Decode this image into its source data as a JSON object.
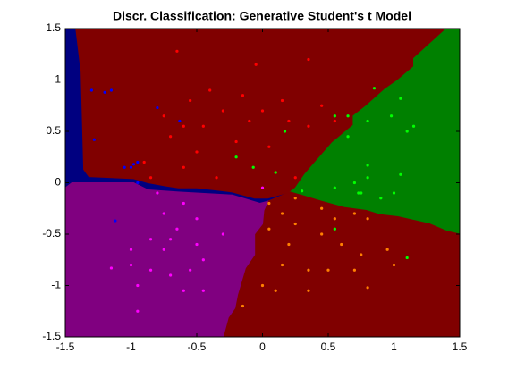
{
  "chart_data": {
    "type": "scatter",
    "title": "Discr. Classification: Generative Student's t Model",
    "xlim": [
      -1.5,
      1.5
    ],
    "ylim": [
      -1.5,
      1.5
    ],
    "xticks": [
      -1.5,
      -1,
      -0.5,
      0,
      0.5,
      1,
      1.5
    ],
    "yticks": [
      -1.5,
      -1,
      -0.5,
      0,
      0.5,
      1,
      1.5
    ],
    "grid": false,
    "regions": [
      {
        "color": "#000080",
        "x": [
          -1.5,
          1.5,
          1.5,
          -1.5
        ],
        "y": [
          1.5,
          1.5,
          -1.5,
          -1.5
        ]
      },
      {
        "color": "#800000",
        "x": [
          -1.42,
          1.4,
          1.15,
          1.15,
          1.03,
          0.93,
          0.79,
          0.69,
          0.69,
          0.53,
          0.38,
          0.32,
          0.25,
          0.21,
          0.04,
          -0.06,
          -0.23,
          -0.36,
          -0.5,
          -0.64,
          -0.74,
          -0.87,
          -0.98,
          -1.32,
          -1.36,
          -1.38
        ],
        "y": [
          1.5,
          1.5,
          1.21,
          1.13,
          1.0,
          0.91,
          0.75,
          0.65,
          0.56,
          0.39,
          0.17,
          0.08,
          -0.05,
          -0.09,
          -0.15,
          -0.15,
          -0.09,
          -0.07,
          -0.05,
          -0.05,
          -0.03,
          0.0,
          0.04,
          0.06,
          0.13,
          1.08
        ]
      },
      {
        "color": "#008000",
        "x": [
          1.4,
          1.5,
          1.5,
          1.4,
          1.27,
          1.03,
          0.89,
          0.79,
          0.62,
          0.45,
          0.32,
          0.21,
          0.25,
          0.32,
          0.38,
          0.53,
          0.69,
          0.69,
          0.79,
          0.93,
          1.03,
          1.15,
          1.15
        ],
        "y": [
          1.5,
          1.5,
          -0.5,
          -0.47,
          -0.4,
          -0.33,
          -0.31,
          -0.27,
          -0.24,
          -0.18,
          -0.13,
          -0.09,
          -0.05,
          0.08,
          0.17,
          0.39,
          0.56,
          0.65,
          0.75,
          0.91,
          1.0,
          1.13,
          1.21
        ]
      },
      {
        "color": "#800000",
        "x": [
          0.21,
          0.32,
          0.45,
          0.62,
          0.79,
          0.89,
          1.03,
          1.27,
          1.4,
          1.5,
          1.5,
          -0.3,
          -0.26,
          -0.21,
          -0.19,
          -0.16,
          -0.13,
          -0.06,
          -0.06,
          0.0,
          0.01,
          0.04
        ],
        "y": [
          -0.09,
          -0.13,
          -0.18,
          -0.24,
          -0.27,
          -0.31,
          -0.33,
          -0.4,
          -0.47,
          -0.5,
          -1.5,
          -1.5,
          -1.31,
          -1.22,
          -1.09,
          -0.96,
          -0.83,
          -0.7,
          -0.5,
          -0.4,
          -0.27,
          -0.18
        ]
      },
      {
        "color": "#800080",
        "x": [
          -1.5,
          -1.45,
          -0.98,
          -0.87,
          -0.64,
          -0.23,
          -0.02,
          0.04,
          0.01,
          0.0,
          -0.06,
          -0.06,
          -0.13,
          -0.16,
          -0.19,
          -0.21,
          -0.26,
          -0.3,
          -1.5
        ],
        "y": [
          -0.05,
          0.0,
          0.0,
          -0.07,
          -0.09,
          -0.12,
          -0.2,
          -0.18,
          -0.27,
          -0.4,
          -0.5,
          -0.7,
          -0.83,
          -0.96,
          -1.09,
          -1.22,
          -1.31,
          -1.5,
          -1.5
        ]
      }
    ],
    "series": [
      {
        "color": "#ff0000",
        "x": [
          -0.65,
          -0.05,
          0.35,
          -0.4,
          -0.55,
          -0.3,
          -0.15,
          0.15,
          -0.75,
          -0.6,
          -0.45,
          -0.1,
          0.2,
          0.35,
          0.05,
          -0.5,
          -0.2,
          -0.6,
          -0.35,
          -0.9,
          -0.85,
          0.1,
          0.25,
          0.0,
          0.45,
          -0.7,
          0.55
        ],
        "y": [
          1.28,
          1.15,
          1.2,
          0.9,
          0.8,
          0.7,
          0.85,
          0.8,
          0.65,
          0.55,
          0.55,
          0.6,
          0.6,
          0.55,
          0.35,
          0.3,
          0.4,
          0.15,
          0.05,
          0.2,
          0.05,
          0.1,
          0.05,
          0.7,
          0.75,
          0.45,
          0.6
        ]
      },
      {
        "color": "#0000ff",
        "x": [
          -1.3,
          -1.2,
          -1.15,
          -1.28,
          -0.8,
          -0.95,
          -1.0,
          -0.98,
          -1.05,
          -0.95,
          -1.12,
          -0.63
        ],
        "y": [
          0.9,
          0.88,
          0.9,
          0.42,
          0.73,
          0.2,
          0.15,
          0.18,
          0.15,
          0.0,
          -0.37,
          0.6
        ]
      },
      {
        "color": "#00ff00",
        "x": [
          0.85,
          1.05,
          0.55,
          0.65,
          0.98,
          0.8,
          1.1,
          1.15,
          0.65,
          0.17,
          -0.2,
          -0.07,
          0.1,
          0.8,
          1.05,
          0.8,
          0.7,
          0.73,
          0.55,
          0.3,
          1.0,
          0.9,
          0.55,
          1.1,
          0.75
        ],
        "y": [
          0.92,
          0.82,
          0.65,
          0.65,
          0.65,
          0.6,
          0.5,
          0.55,
          0.45,
          0.5,
          0.25,
          0.15,
          0.1,
          0.17,
          0.08,
          0.05,
          0.0,
          -0.1,
          -0.05,
          -0.08,
          -0.1,
          -0.15,
          -0.45,
          -0.73,
          -0.1
        ]
      },
      {
        "color": "#ff00ff",
        "x": [
          -0.8,
          -0.6,
          -0.75,
          -0.5,
          -0.65,
          -0.85,
          -0.7,
          -1.0,
          -0.75,
          -0.5,
          -1.15,
          -1.0,
          -0.85,
          -0.55,
          -0.95,
          -0.6,
          -0.45,
          -0.95,
          -0.3,
          -0.45,
          -0.7,
          0.0
        ],
        "y": [
          -0.1,
          -0.2,
          -0.3,
          -0.35,
          -0.45,
          -0.55,
          -0.55,
          -0.65,
          -0.65,
          -0.6,
          -0.83,
          -0.8,
          -0.85,
          -0.85,
          -1.0,
          -1.05,
          -1.05,
          -1.25,
          -0.5,
          -0.75,
          -0.9,
          -0.05
        ]
      },
      {
        "color": "#ff8000",
        "x": [
          0.05,
          0.25,
          0.15,
          0.45,
          0.55,
          0.7,
          0.8,
          0.05,
          0.25,
          0.45,
          0.2,
          0.6,
          0.95,
          0.75,
          1.0,
          0.35,
          0.5,
          0.7,
          0.15,
          0.0,
          0.35,
          0.8,
          0.1,
          -0.15
        ],
        "y": [
          -0.2,
          -0.15,
          -0.3,
          -0.25,
          -0.35,
          -0.3,
          -0.35,
          -0.45,
          -0.4,
          -0.5,
          -0.6,
          -0.6,
          -0.65,
          -0.7,
          -0.8,
          -0.85,
          -0.85,
          -0.85,
          -0.8,
          -1.0,
          -1.05,
          -1.02,
          -1.05,
          -1.2
        ]
      }
    ]
  }
}
